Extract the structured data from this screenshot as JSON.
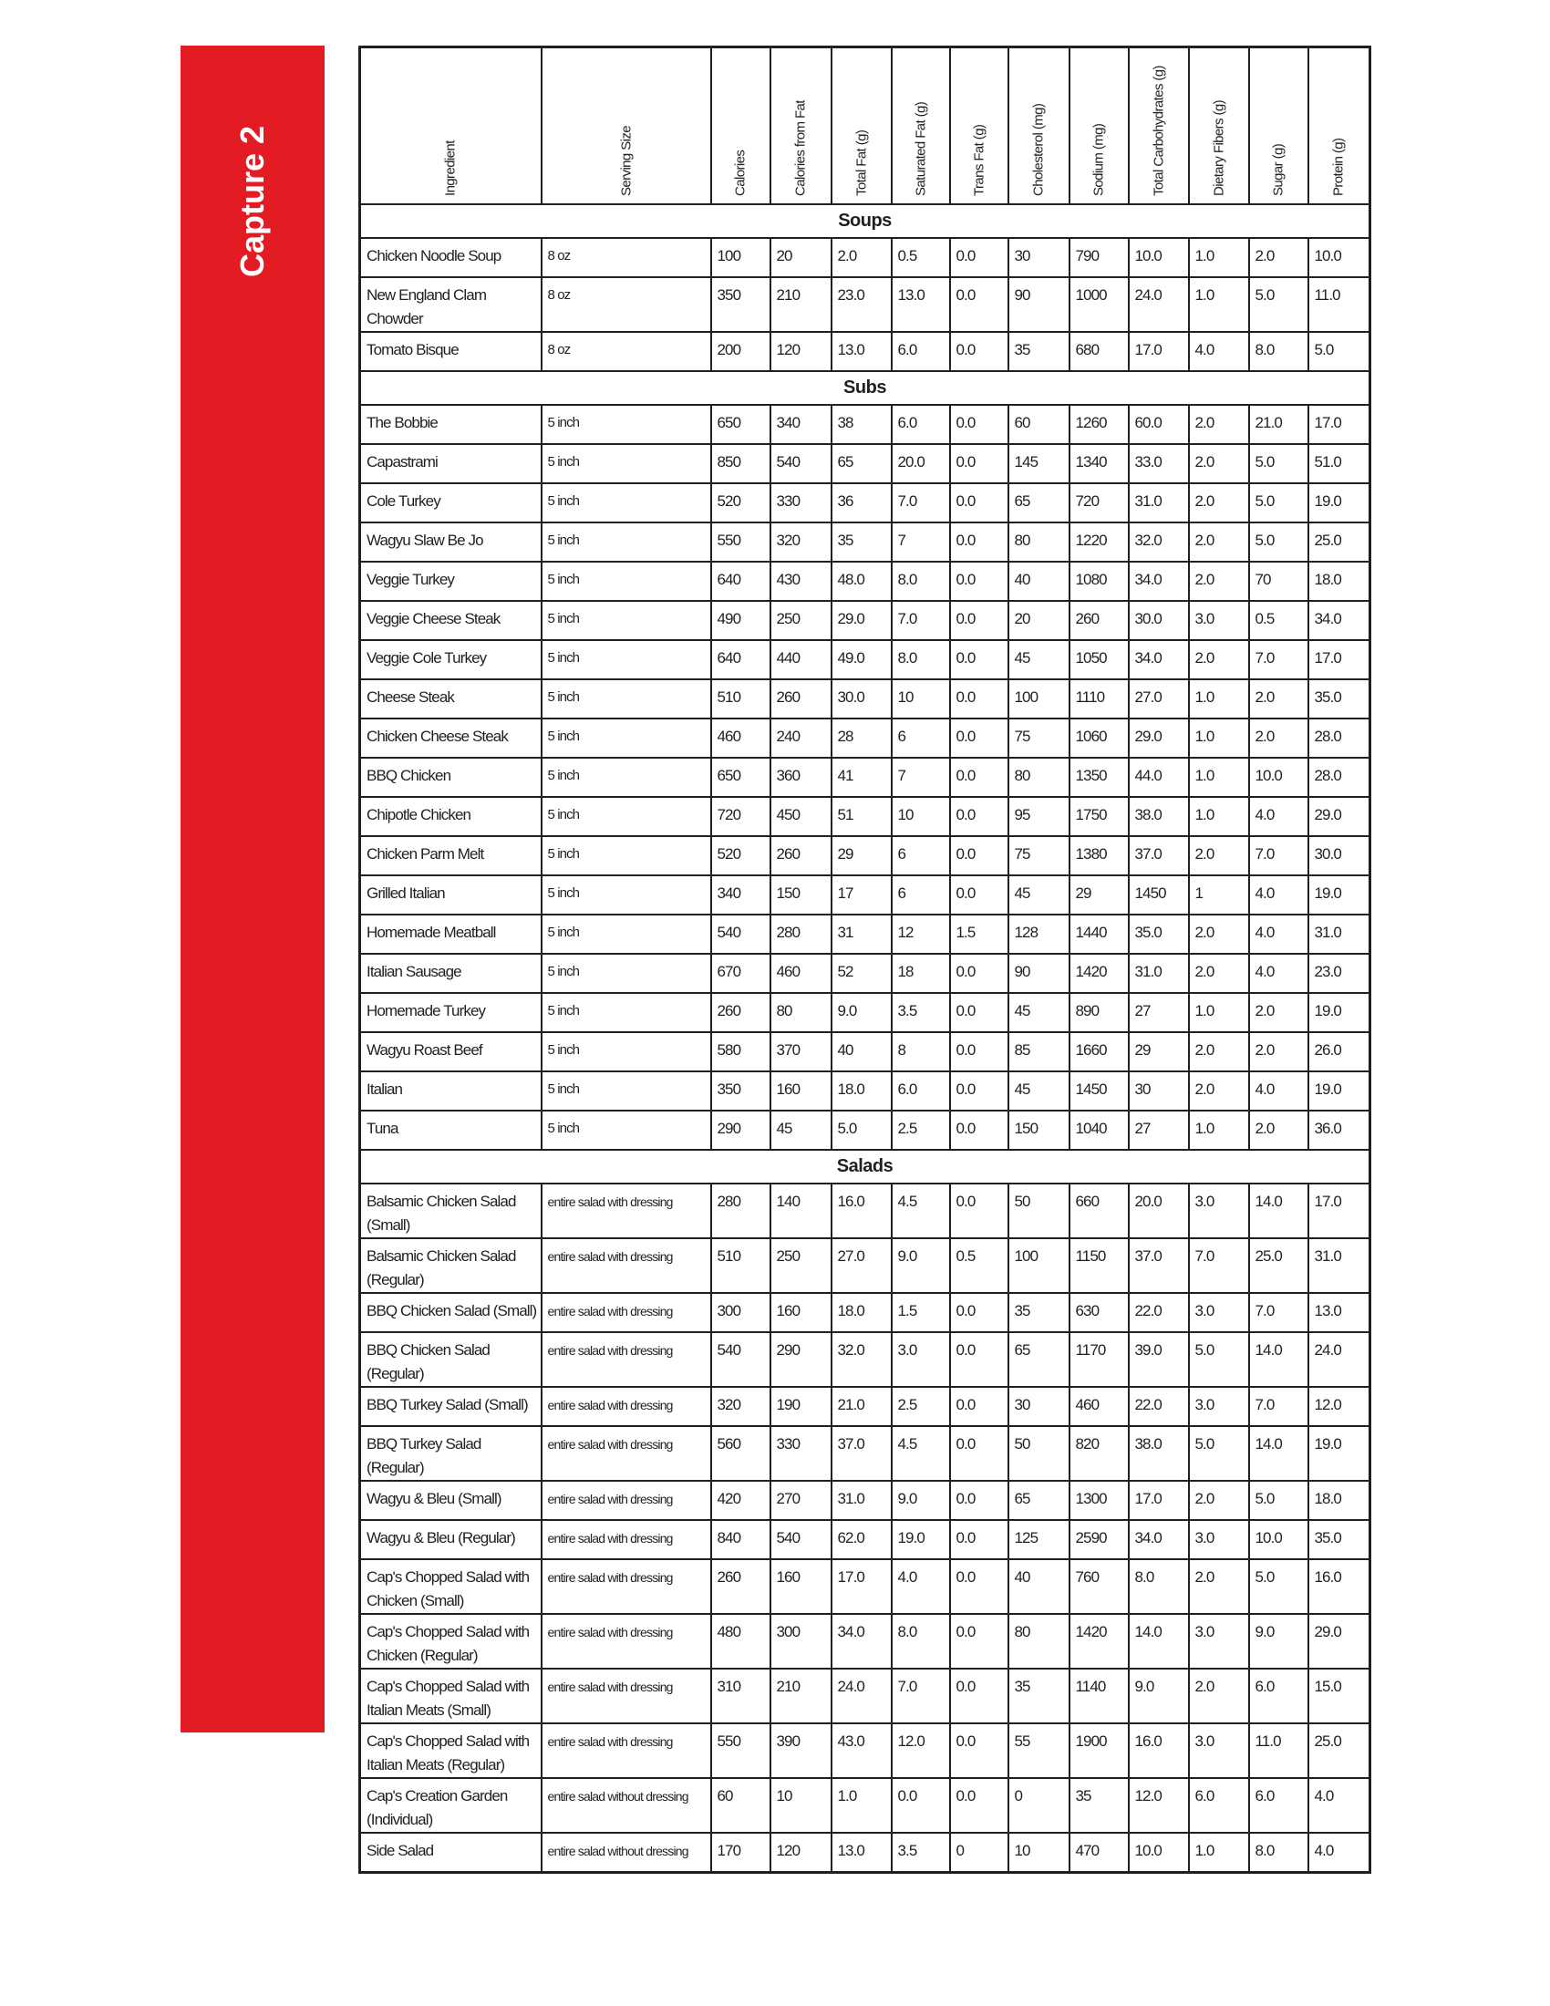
{
  "sidebar": {
    "title": "Capture 2",
    "color": "#e31b23"
  },
  "columns": [
    "Ingredient",
    "Serving Size",
    "Calories",
    "Calories from Fat",
    "Total Fat (g)",
    "Saturated Fat (g)",
    "Trans Fat (g)",
    "Cholesterol (mg)",
    "Sodium (mg)",
    "Total Carbohydrates (g)",
    "Dietary Fibers (g)",
    "Sugar (g)",
    "Protein (g)"
  ],
  "sections": [
    {
      "title": "Soups",
      "rows": [
        [
          "Chicken Noodle Soup",
          "8 oz",
          "100",
          "20",
          "2.0",
          "0.5",
          "0.0",
          "30",
          "790",
          "10.0",
          "1.0",
          "2.0",
          "10.0"
        ],
        [
          "New England Clam Chowder",
          "8 oz",
          "350",
          "210",
          "23.0",
          "13.0",
          "0.0",
          "90",
          "1000",
          "24.0",
          "1.0",
          "5.0",
          "11.0"
        ],
        [
          "Tomato Bisque",
          "8 oz",
          "200",
          "120",
          "13.0",
          "6.0",
          "0.0",
          "35",
          "680",
          "17.0",
          "4.0",
          "8.0",
          "5.0"
        ]
      ]
    },
    {
      "title": "Subs",
      "rows": [
        [
          "The Bobbie",
          "5 inch",
          "650",
          "340",
          "38",
          "6.0",
          "0.0",
          "60",
          "1260",
          "60.0",
          "2.0",
          "21.0",
          "17.0"
        ],
        [
          "Capastrami",
          "5 inch",
          "850",
          "540",
          "65",
          "20.0",
          "0.0",
          "145",
          "1340",
          "33.0",
          "2.0",
          "5.0",
          "51.0"
        ],
        [
          "Cole Turkey",
          "5 inch",
          "520",
          "330",
          "36",
          "7.0",
          "0.0",
          "65",
          "720",
          "31.0",
          "2.0",
          "5.0",
          "19.0"
        ],
        [
          "Wagyu Slaw Be Jo",
          "5 inch",
          "550",
          "320",
          "35",
          "7",
          "0.0",
          "80",
          "1220",
          "32.0",
          "2.0",
          "5.0",
          "25.0"
        ],
        [
          "Veggie Turkey",
          "5 inch",
          "640",
          "430",
          "48.0",
          "8.0",
          "0.0",
          "40",
          "1080",
          "34.0",
          "2.0",
          "70",
          "18.0"
        ],
        [
          "Veggie Cheese Steak",
          "5 inch",
          "490",
          "250",
          "29.0",
          "7.0",
          "0.0",
          "20",
          "260",
          "30.0",
          "3.0",
          "0.5",
          "34.0"
        ],
        [
          "Veggie Cole Turkey",
          "5 inch",
          "640",
          "440",
          "49.0",
          "8.0",
          "0.0",
          "45",
          "1050",
          "34.0",
          "2.0",
          "7.0",
          "17.0"
        ],
        [
          "Cheese Steak",
          "5 inch",
          "510",
          "260",
          "30.0",
          "10",
          "0.0",
          "100",
          "1110",
          "27.0",
          "1.0",
          "2.0",
          "35.0"
        ],
        [
          "Chicken Cheese Steak",
          "5 inch",
          "460",
          "240",
          "28",
          "6",
          "0.0",
          "75",
          "1060",
          "29.0",
          "1.0",
          "2.0",
          "28.0"
        ],
        [
          "BBQ Chicken",
          "5 inch",
          "650",
          "360",
          "41",
          "7",
          "0.0",
          "80",
          "1350",
          "44.0",
          "1.0",
          "10.0",
          "28.0"
        ],
        [
          "Chipotle Chicken",
          "5 inch",
          "720",
          "450",
          "51",
          "10",
          "0.0",
          "95",
          "1750",
          "38.0",
          "1.0",
          "4.0",
          "29.0"
        ],
        [
          "Chicken Parm Melt",
          "5 inch",
          "520",
          "260",
          "29",
          "6",
          "0.0",
          "75",
          "1380",
          "37.0",
          "2.0",
          "7.0",
          "30.0"
        ],
        [
          "Grilled Italian",
          "5 inch",
          "340",
          "150",
          "17",
          "6",
          "0.0",
          "45",
          "29",
          "1450",
          "1",
          "4.0",
          "19.0"
        ],
        [
          "Homemade Meatball",
          "5 inch",
          "540",
          "280",
          "31",
          "12",
          "1.5",
          "128",
          "1440",
          "35.0",
          "2.0",
          "4.0",
          "31.0"
        ],
        [
          "Italian Sausage",
          "5 inch",
          "670",
          "460",
          "52",
          "18",
          "0.0",
          "90",
          "1420",
          "31.0",
          "2.0",
          "4.0",
          "23.0"
        ],
        [
          "Homemade Turkey",
          "5 inch",
          "260",
          "80",
          "9.0",
          "3.5",
          "0.0",
          "45",
          "890",
          "27",
          "1.0",
          "2.0",
          "19.0"
        ],
        [
          "Wagyu Roast Beef",
          "5 inch",
          "580",
          "370",
          "40",
          "8",
          "0.0",
          "85",
          "1660",
          "29",
          "2.0",
          "2.0",
          "26.0"
        ],
        [
          "Italian",
          "5 inch",
          "350",
          "160",
          "18.0",
          "6.0",
          "0.0",
          "45",
          "1450",
          "30",
          "2.0",
          "4.0",
          "19.0"
        ],
        [
          "Tuna",
          "5 inch",
          "290",
          "45",
          "5.0",
          "2.5",
          "0.0",
          "150",
          "1040",
          "27",
          "1.0",
          "2.0",
          "36.0"
        ]
      ]
    },
    {
      "title": "Salads",
      "rows": [
        [
          "Balsamic Chicken Salad (Small)",
          "entire salad with dressing",
          "280",
          "140",
          "16.0",
          "4.5",
          "0.0",
          "50",
          "660",
          "20.0",
          "3.0",
          "14.0",
          "17.0"
        ],
        [
          "Balsamic Chicken Salad (Regular)",
          "entire salad with dressing",
          "510",
          "250",
          "27.0",
          "9.0",
          "0.5",
          "100",
          "1150",
          "37.0",
          "7.0",
          "25.0",
          "31.0"
        ],
        [
          "BBQ Chicken Salad (Small)",
          "entire salad with dressing",
          "300",
          "160",
          "18.0",
          "1.5",
          "0.0",
          "35",
          "630",
          "22.0",
          "3.0",
          "7.0",
          "13.0"
        ],
        [
          "BBQ Chicken Salad (Regular)",
          "entire salad with dressing",
          "540",
          "290",
          "32.0",
          "3.0",
          "0.0",
          "65",
          "1170",
          "39.0",
          "5.0",
          "14.0",
          "24.0"
        ],
        [
          "BBQ Turkey Salad (Small)",
          "entire salad with dressing",
          "320",
          "190",
          "21.0",
          "2.5",
          "0.0",
          "30",
          "460",
          "22.0",
          "3.0",
          "7.0",
          "12.0"
        ],
        [
          "BBQ Turkey Salad (Regular)",
          "entire salad with dressing",
          "560",
          "330",
          "37.0",
          "4.5",
          "0.0",
          "50",
          "820",
          "38.0",
          "5.0",
          "14.0",
          "19.0"
        ],
        [
          "Wagyu & Bleu (Small)",
          "entire salad with dressing",
          "420",
          "270",
          "31.0",
          "9.0",
          "0.0",
          "65",
          "1300",
          "17.0",
          "2.0",
          "5.0",
          "18.0"
        ],
        [
          "Wagyu & Bleu (Regular)",
          "entire salad with dressing",
          "840",
          "540",
          "62.0",
          "19.0",
          "0.0",
          "125",
          "2590",
          "34.0",
          "3.0",
          "10.0",
          "35.0"
        ],
        [
          "Cap's Chopped Salad with Chicken (Small)",
          "entire salad with dressing",
          "260",
          "160",
          "17.0",
          "4.0",
          "0.0",
          "40",
          "760",
          "8.0",
          "2.0",
          "5.0",
          "16.0"
        ],
        [
          "Cap's Chopped Salad with Chicken (Regular)",
          "entire salad with dressing",
          "480",
          "300",
          "34.0",
          "8.0",
          "0.0",
          "80",
          "1420",
          "14.0",
          "3.0",
          "9.0",
          "29.0"
        ],
        [
          "Cap's Chopped Salad with Italian Meats (Small)",
          "entire salad with dressing",
          "310",
          "210",
          "24.0",
          "7.0",
          "0.0",
          "35",
          "1140",
          "9.0",
          "2.0",
          "6.0",
          "15.0"
        ],
        [
          "Cap's Chopped Salad with Italian Meats (Regular)",
          "entire salad with dressing",
          "550",
          "390",
          "43.0",
          "12.0",
          "0.0",
          "55",
          "1900",
          "16.0",
          "3.0",
          "11.0",
          "25.0"
        ],
        [
          "Cap's Creation Garden (Individual)",
          "entire salad without dressing",
          "60",
          "10",
          "1.0",
          "0.0",
          "0.0",
          "0",
          "35",
          "12.0",
          "6.0",
          "6.0",
          "4.0"
        ],
        [
          "Side Salad",
          "entire salad without dressing",
          "170",
          "120",
          "13.0",
          "3.5",
          "0",
          "10",
          "470",
          "10.0",
          "1.0",
          "8.0",
          "4.0"
        ]
      ]
    }
  ]
}
